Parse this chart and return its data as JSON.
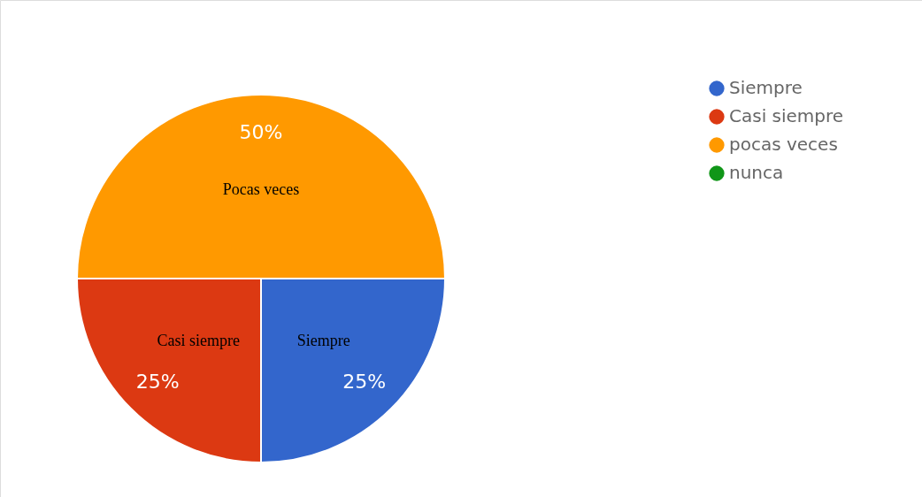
{
  "chart_data": {
    "type": "pie",
    "categories": [
      "Siempre",
      "Casi siempre",
      "pocas veces",
      "nunca"
    ],
    "values": [
      25,
      25,
      50,
      0
    ],
    "colors": [
      "#3366cc",
      "#dc3912",
      "#ff9900",
      "#109618"
    ],
    "value_labels": [
      "25%",
      "25%",
      "50%",
      null
    ],
    "legend": "top right",
    "annotations": [
      {
        "text": "Siempre",
        "x": "Siempre"
      },
      {
        "text": "Casi siempre",
        "x": "Casi siempre"
      },
      {
        "text": "Pocas veces",
        "x": "pocas veces"
      }
    ]
  }
}
